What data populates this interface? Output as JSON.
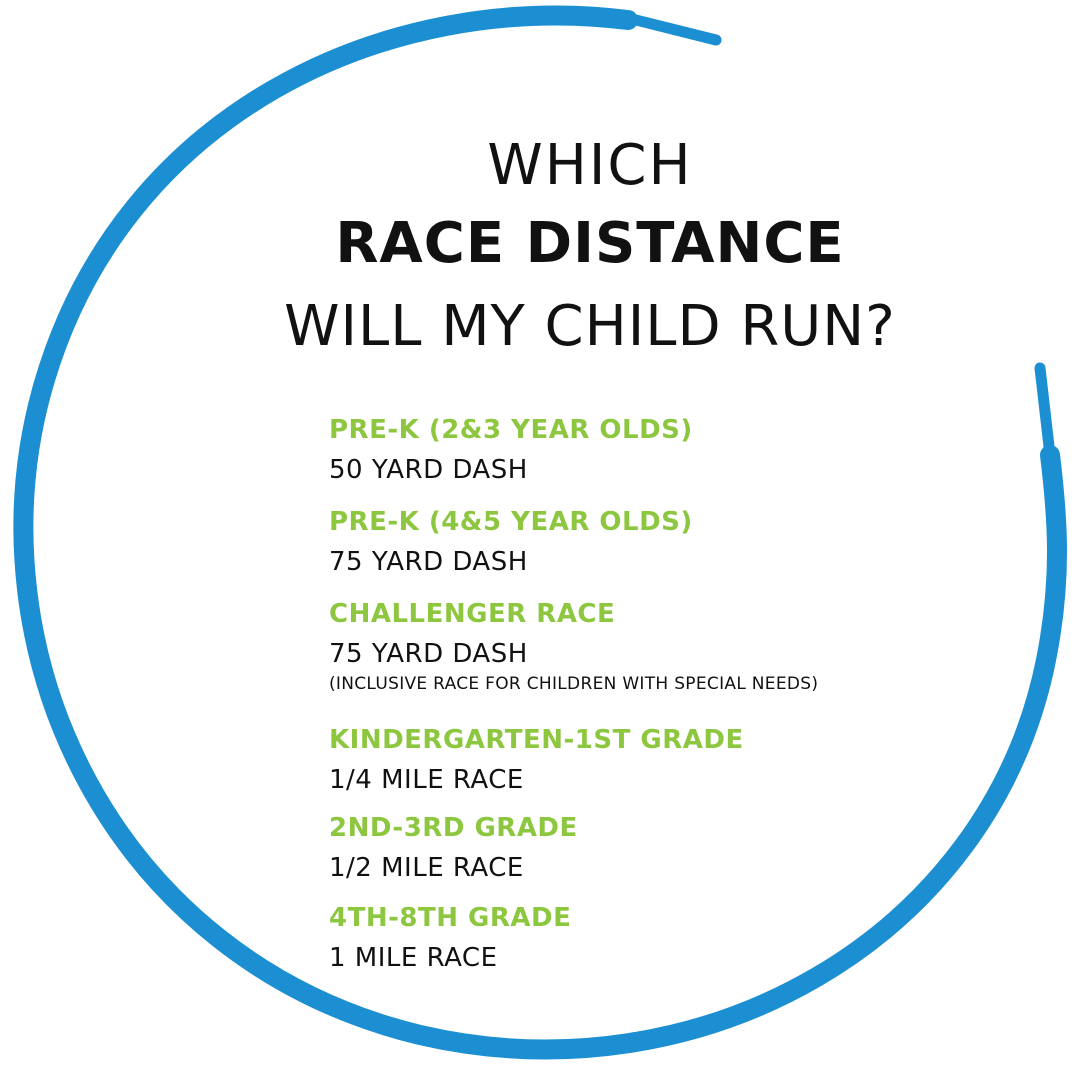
{
  "title": {
    "line1": "WHICH",
    "line2": "RACE DISTANCE",
    "line3": "WILL MY CHILD RUN?"
  },
  "races": [
    {
      "group": "PRE-K (2&3 YEAR OLDS)",
      "distance": "50 YARD DASH",
      "note": ""
    },
    {
      "group": "PRE-K (4&5 YEAR OLDS)",
      "distance": "75 YARD DASH",
      "note": ""
    },
    {
      "group": "CHALLENGER RACE",
      "distance": "75 YARD DASH",
      "note": "(INCLUSIVE RACE FOR CHILDREN WITH SPECIAL NEEDS)"
    },
    {
      "group": "KINDERGARTEN-1ST GRADE",
      "distance": "1/4 MILE RACE",
      "note": ""
    },
    {
      "group": "2ND-3RD GRADE",
      "distance": "1/2 MILE RACE",
      "note": ""
    },
    {
      "group": "4TH-8TH GRADE",
      "distance": "1 MILE RACE",
      "note": ""
    }
  ],
  "colors": {
    "lace": "#1b8fd2",
    "group_text": "#8dc63f",
    "body_text": "#111111",
    "background": "#ffffff"
  },
  "decoration": {
    "icon": "shoelace-circle-icon"
  }
}
